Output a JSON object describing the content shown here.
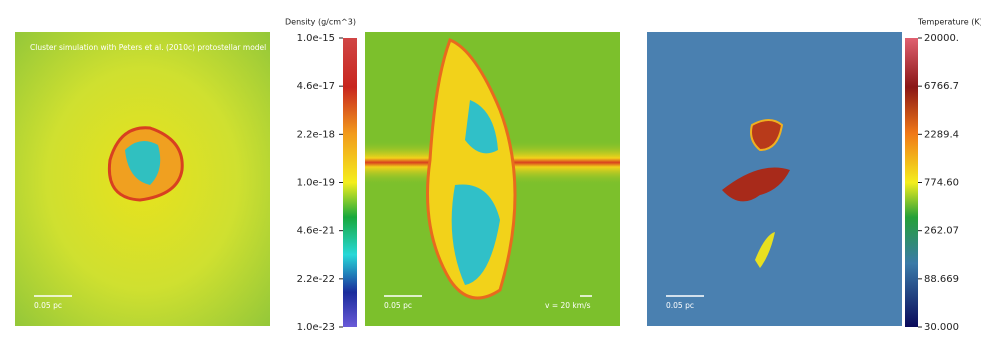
{
  "panels": [
    {
      "caption": "Cluster simulation with Peters et al. (2010c) protostellar model",
      "scale_label": "0.05 pc"
    },
    {
      "scale_label": "0.05 pc",
      "vector_label": "v = 20 km/s"
    },
    {
      "scale_label": "0.05 pc"
    }
  ],
  "colorbars": [
    {
      "title": "Density (g/cm^3)",
      "ticks": [
        "1.0e-15",
        "4.6e-17",
        "2.2e-18",
        "1.0e-19",
        "4.6e-21",
        "2.2e-22",
        "1.0e-23"
      ]
    },
    {
      "title": "Temperature (K)",
      "ticks": [
        "20000.",
        "6766.7",
        "2289.4",
        "774.60",
        "262.07",
        "88.669",
        "30.000"
      ]
    }
  ]
}
